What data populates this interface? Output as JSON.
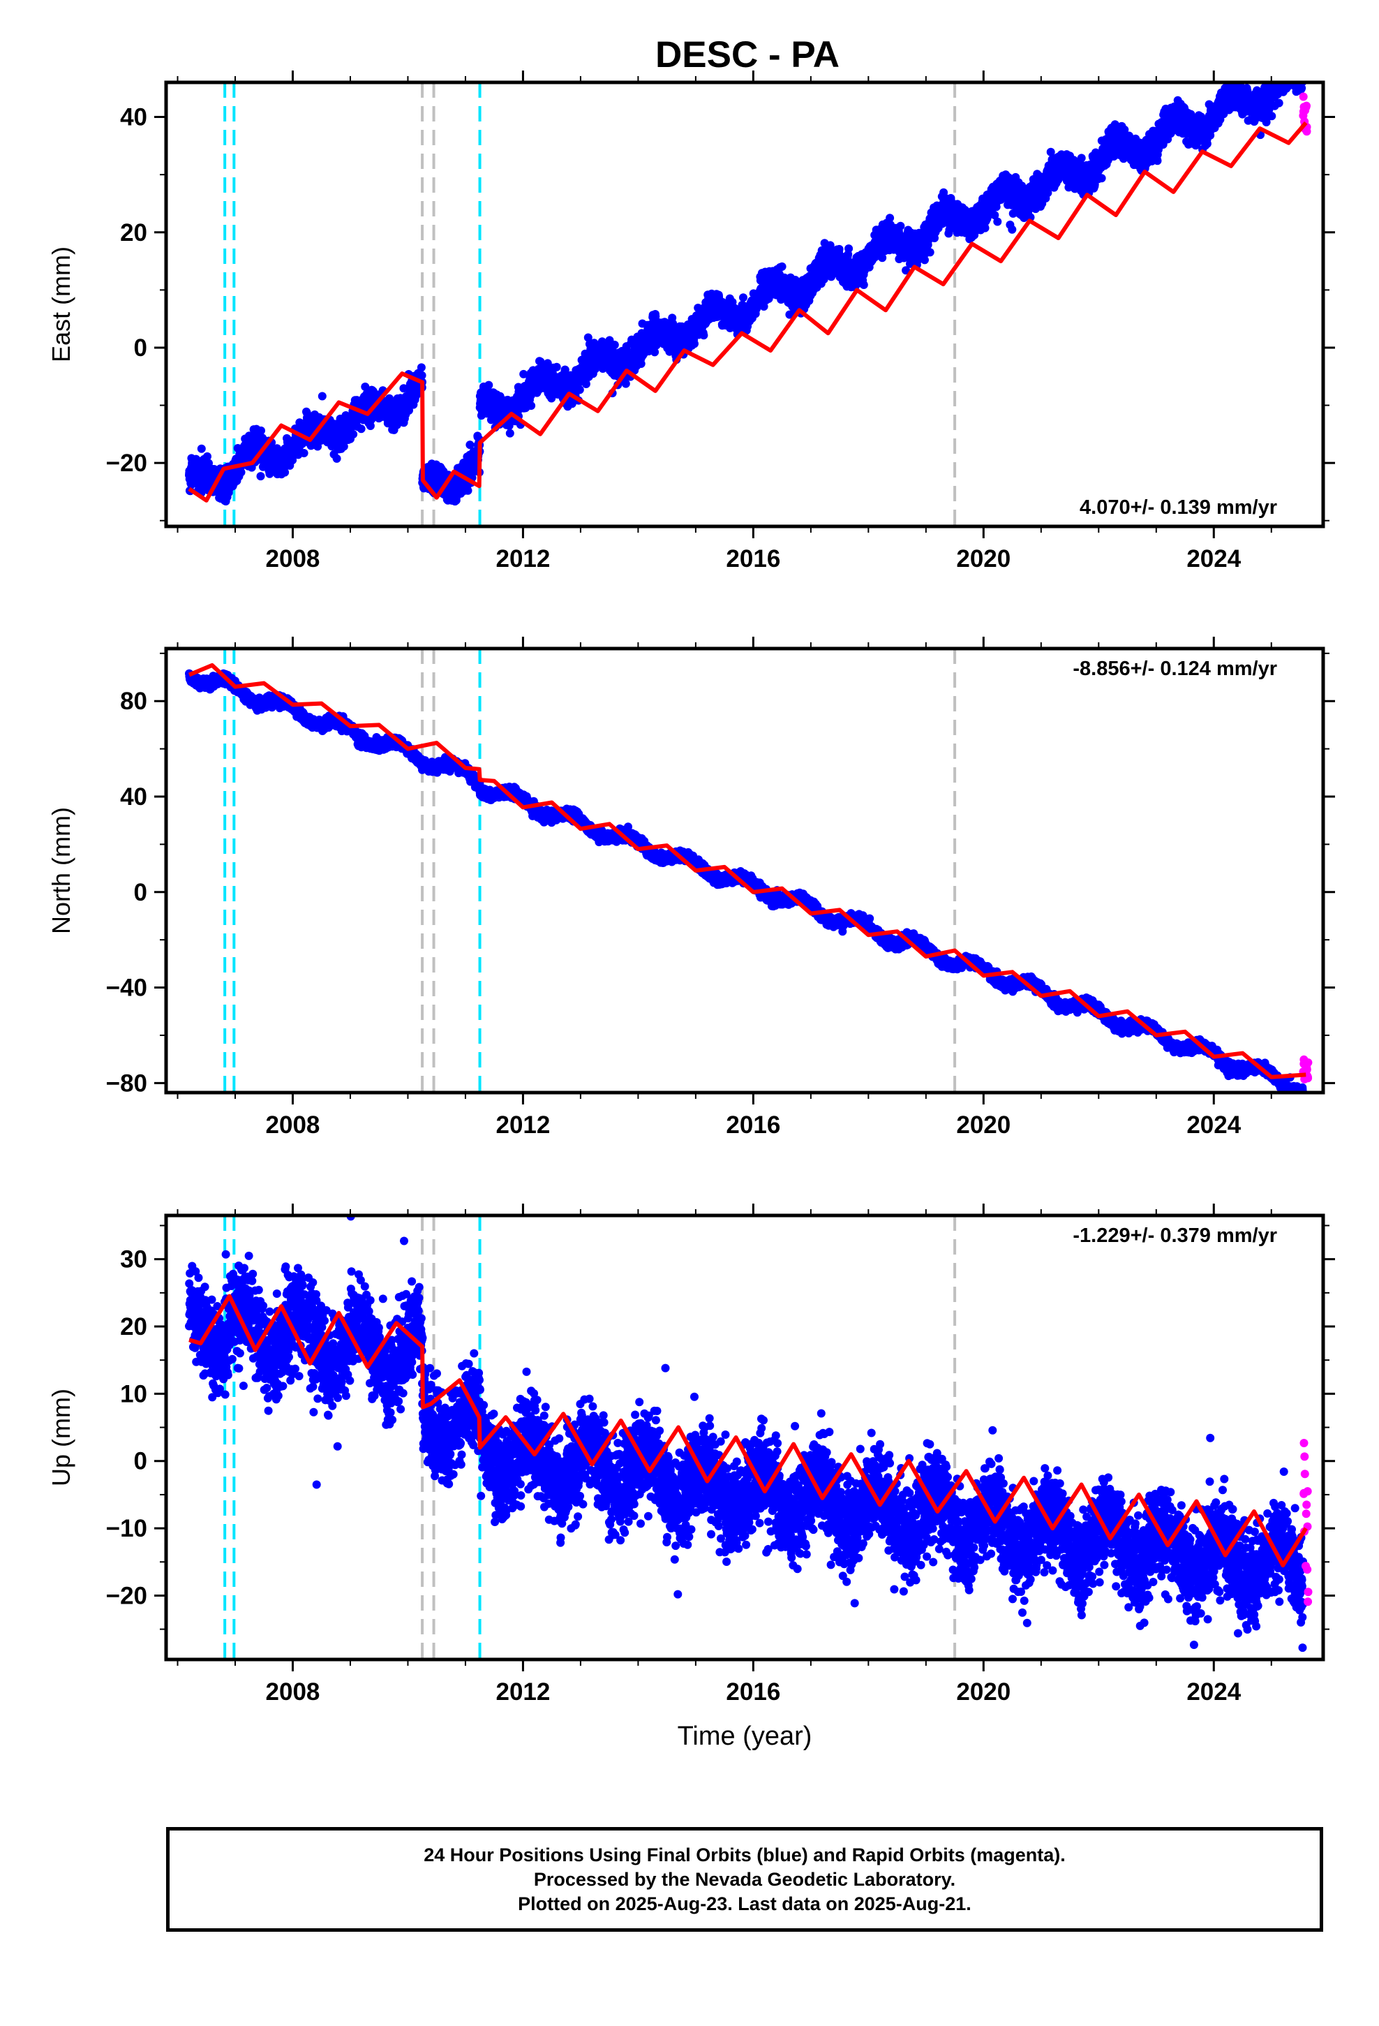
{
  "title": "DESC - PA",
  "colors": {
    "final_orbits": "#0000ff",
    "rapid_orbits": "#ff00ff",
    "model_fit": "#ff0000",
    "equipment_change": "#00e5ff",
    "other_event": "#c0c0c0"
  },
  "chart_data": [
    {
      "type": "scatter",
      "name": "east",
      "ylabel": "East (mm)",
      "xlabel": "",
      "xlim": [
        2005.8,
        2025.9
      ],
      "ylim": [
        -31,
        46
      ],
      "yticks": [
        -20,
        0,
        20,
        40
      ],
      "xticks": [
        2008,
        2012,
        2016,
        2020,
        2024
      ],
      "rate_label": "4.070+/- 0.139 mm/yr",
      "rate_position": "bottom-right",
      "rate": 4.07,
      "offsets": [
        {
          "t": 2010.25,
          "dy": -17.0
        },
        {
          "t": 2011.25,
          "dy": 9.0
        }
      ],
      "seasonal": {
        "amplitude": 2.0,
        "phase": 0.15
      },
      "noise_sd": 1.2,
      "anchor": {
        "t": 2006.2,
        "y": -24.0
      },
      "rapid_y_range": [
        37.5,
        44.0
      ],
      "series": [
        {
          "name": "Final Orbits",
          "color": "#0000ff",
          "t_range": [
            2006.2,
            2025.55
          ],
          "gaps": [
            [
              2010.32,
              2010.34
            ]
          ]
        },
        {
          "name": "Rapid Orbits",
          "color": "#ff00ff",
          "t_range": [
            2025.55,
            2025.64
          ]
        },
        {
          "name": "Model",
          "color": "#ff0000",
          "points": [
            [
              2006.2,
              -24.5
            ],
            [
              2006.5,
              -26.5
            ],
            [
              2006.8,
              -21.0
            ],
            [
              2007.3,
              -20.0
            ],
            [
              2007.8,
              -13.5
            ],
            [
              2008.3,
              -16.0
            ],
            [
              2008.8,
              -9.5
            ],
            [
              2009.3,
              -11.5
            ],
            [
              2009.9,
              -4.5
            ],
            [
              2010.25,
              -6.0
            ],
            [
              2010.26,
              -23.0
            ],
            [
              2010.5,
              -26.0
            ],
            [
              2010.8,
              -21.5
            ],
            [
              2011.24,
              -24.0
            ],
            [
              2011.25,
              -16.5
            ],
            [
              2011.8,
              -11.5
            ],
            [
              2012.3,
              -15.0
            ],
            [
              2012.8,
              -8.0
            ],
            [
              2013.3,
              -11.0
            ],
            [
              2013.8,
              -4.0
            ],
            [
              2014.3,
              -7.5
            ],
            [
              2014.8,
              -0.5
            ],
            [
              2015.3,
              -3.0
            ],
            [
              2015.8,
              2.5
            ],
            [
              2016.3,
              -0.5
            ],
            [
              2016.8,
              6.5
            ],
            [
              2017.3,
              2.5
            ],
            [
              2017.8,
              10.0
            ],
            [
              2018.3,
              6.5
            ],
            [
              2018.8,
              14.0
            ],
            [
              2019.3,
              11.0
            ],
            [
              2019.8,
              18.0
            ],
            [
              2020.3,
              15.0
            ],
            [
              2020.8,
              22.0
            ],
            [
              2021.3,
              19.0
            ],
            [
              2021.8,
              26.5
            ],
            [
              2022.3,
              23.0
            ],
            [
              2022.8,
              30.5
            ],
            [
              2023.3,
              27.0
            ],
            [
              2023.8,
              34.0
            ],
            [
              2024.3,
              31.5
            ],
            [
              2024.8,
              38.0
            ],
            [
              2025.3,
              35.5
            ],
            [
              2025.6,
              39.0
            ]
          ]
        }
      ]
    },
    {
      "type": "scatter",
      "name": "north",
      "ylabel": "North (mm)",
      "xlabel": "",
      "xlim": [
        2005.8,
        2025.9
      ],
      "ylim": [
        -84,
        102
      ],
      "yticks": [
        -80,
        -40,
        0,
        40,
        80
      ],
      "xticks": [
        2008,
        2012,
        2016,
        2020,
        2024
      ],
      "rate_label": "-8.856+/- 0.124 mm/yr",
      "rate_position": "top-right",
      "rate": -8.856,
      "offsets": [
        {
          "t": 2011.25,
          "dy": -3.0
        }
      ],
      "seasonal": {
        "amplitude": 2.5,
        "phase": 0.6
      },
      "noise_sd": 1.0,
      "anchor": {
        "t": 2006.2,
        "y": 92.0
      },
      "rapid_y_range": [
        -79.0,
        -70.0
      ],
      "series": [
        {
          "name": "Final Orbits",
          "color": "#0000ff",
          "t_range": [
            2006.2,
            2025.55
          ],
          "gaps": [
            [
              2010.32,
              2010.34
            ]
          ]
        },
        {
          "name": "Rapid Orbits",
          "color": "#ff00ff",
          "t_range": [
            2025.55,
            2025.64
          ]
        },
        {
          "name": "Model",
          "color": "#ff0000",
          "points": [
            [
              2006.2,
              91.0
            ],
            [
              2006.6,
              95.0
            ],
            [
              2007.0,
              86.0
            ],
            [
              2007.5,
              87.5
            ],
            [
              2008.0,
              78.5
            ],
            [
              2008.5,
              79.0
            ],
            [
              2009.0,
              69.5
            ],
            [
              2009.5,
              70.0
            ],
            [
              2010.0,
              60.0
            ],
            [
              2010.5,
              62.5
            ],
            [
              2011.0,
              52.0
            ],
            [
              2011.24,
              51.5
            ],
            [
              2011.25,
              47.0
            ],
            [
              2011.5,
              46.5
            ],
            [
              2012.0,
              35.5
            ],
            [
              2012.5,
              37.5
            ],
            [
              2013.0,
              26.5
            ],
            [
              2013.5,
              28.5
            ],
            [
              2014.0,
              18.0
            ],
            [
              2014.5,
              19.5
            ],
            [
              2015.0,
              9.0
            ],
            [
              2015.5,
              10.5
            ],
            [
              2016.0,
              0.0
            ],
            [
              2016.5,
              1.5
            ],
            [
              2017.0,
              -9.0
            ],
            [
              2017.5,
              -7.5
            ],
            [
              2018.0,
              -18.0
            ],
            [
              2018.5,
              -16.5
            ],
            [
              2019.0,
              -27.0
            ],
            [
              2019.5,
              -24.5
            ],
            [
              2020.0,
              -35.0
            ],
            [
              2020.5,
              -33.5
            ],
            [
              2021.0,
              -43.5
            ],
            [
              2021.5,
              -41.5
            ],
            [
              2022.0,
              -52.0
            ],
            [
              2022.5,
              -50.0
            ],
            [
              2023.0,
              -60.0
            ],
            [
              2023.5,
              -58.5
            ],
            [
              2024.0,
              -69.0
            ],
            [
              2024.5,
              -67.5
            ],
            [
              2025.0,
              -77.5
            ],
            [
              2025.6,
              -76.5
            ]
          ]
        }
      ]
    },
    {
      "type": "scatter",
      "name": "up",
      "ylabel": "Up (mm)",
      "xlabel": "Time (year)",
      "xlim": [
        2005.8,
        2025.9
      ],
      "ylim": [
        -29.5,
        36.5
      ],
      "yticks": [
        -20,
        -10,
        0,
        10,
        20,
        30
      ],
      "xticks": [
        2008,
        2012,
        2016,
        2020,
        2024
      ],
      "rate_label": "-1.229+/- 0.379 mm/yr",
      "rate_position": "top-right",
      "rate": -1.229,
      "offsets": [
        {
          "t": 2010.25,
          "dy": -9.0
        },
        {
          "t": 2011.25,
          "dy": -4.0
        }
      ],
      "seasonal": {
        "amplitude": 3.5,
        "phase": 0.3
      },
      "noise_sd": 3.3,
      "anchor": {
        "t": 2006.2,
        "y": 20.5
      },
      "rapid_y_range": [
        -21.0,
        3.5
      ],
      "series": [
        {
          "name": "Final Orbits",
          "color": "#0000ff",
          "t_range": [
            2006.2,
            2025.55
          ],
          "gaps": [
            [
              2010.32,
              2010.34
            ]
          ]
        },
        {
          "name": "Rapid Orbits",
          "color": "#ff00ff",
          "t_range": [
            2025.55,
            2025.64
          ]
        },
        {
          "name": "Model",
          "color": "#ff0000",
          "points": [
            [
              2006.2,
              18.0
            ],
            [
              2006.4,
              17.5
            ],
            [
              2006.9,
              24.5
            ],
            [
              2007.35,
              16.5
            ],
            [
              2007.8,
              23.0
            ],
            [
              2008.3,
              14.5
            ],
            [
              2008.8,
              22.0
            ],
            [
              2009.3,
              14.0
            ],
            [
              2009.8,
              20.5
            ],
            [
              2010.25,
              17.0
            ],
            [
              2010.26,
              8.0
            ],
            [
              2010.4,
              8.5
            ],
            [
              2010.9,
              12.0
            ],
            [
              2011.24,
              6.5
            ],
            [
              2011.25,
              2.0
            ],
            [
              2011.7,
              6.5
            ],
            [
              2012.2,
              1.0
            ],
            [
              2012.7,
              7.0
            ],
            [
              2013.2,
              -0.5
            ],
            [
              2013.7,
              6.0
            ],
            [
              2014.2,
              -1.5
            ],
            [
              2014.7,
              5.0
            ],
            [
              2015.2,
              -3.0
            ],
            [
              2015.7,
              3.5
            ],
            [
              2016.2,
              -4.5
            ],
            [
              2016.7,
              2.5
            ],
            [
              2017.2,
              -5.5
            ],
            [
              2017.7,
              1.0
            ],
            [
              2018.2,
              -6.5
            ],
            [
              2018.7,
              0.0
            ],
            [
              2019.2,
              -7.5
            ],
            [
              2019.7,
              -1.5
            ],
            [
              2020.2,
              -9.0
            ],
            [
              2020.7,
              -2.5
            ],
            [
              2021.2,
              -10.0
            ],
            [
              2021.7,
              -3.5
            ],
            [
              2022.2,
              -11.5
            ],
            [
              2022.7,
              -5.0
            ],
            [
              2023.2,
              -12.5
            ],
            [
              2023.7,
              -6.0
            ],
            [
              2024.2,
              -14.0
            ],
            [
              2024.7,
              -7.5
            ],
            [
              2025.2,
              -15.5
            ],
            [
              2025.6,
              -10.0
            ]
          ]
        }
      ]
    }
  ],
  "events": [
    {
      "t": 2006.82,
      "kind": "equipment_change"
    },
    {
      "t": 2006.98,
      "kind": "equipment_change"
    },
    {
      "t": 2010.25,
      "kind": "other_event"
    },
    {
      "t": 2010.45,
      "kind": "other_event"
    },
    {
      "t": 2011.25,
      "kind": "equipment_change"
    },
    {
      "t": 2019.5,
      "kind": "other_event"
    }
  ],
  "footer": {
    "line1": "24 Hour Positions Using Final Orbits (blue) and Rapid Orbits (magenta).",
    "line2": "Processed by the Nevada Geodetic Laboratory.",
    "line3": "Plotted on 2025-Aug-23. Last data on 2025-Aug-21."
  }
}
